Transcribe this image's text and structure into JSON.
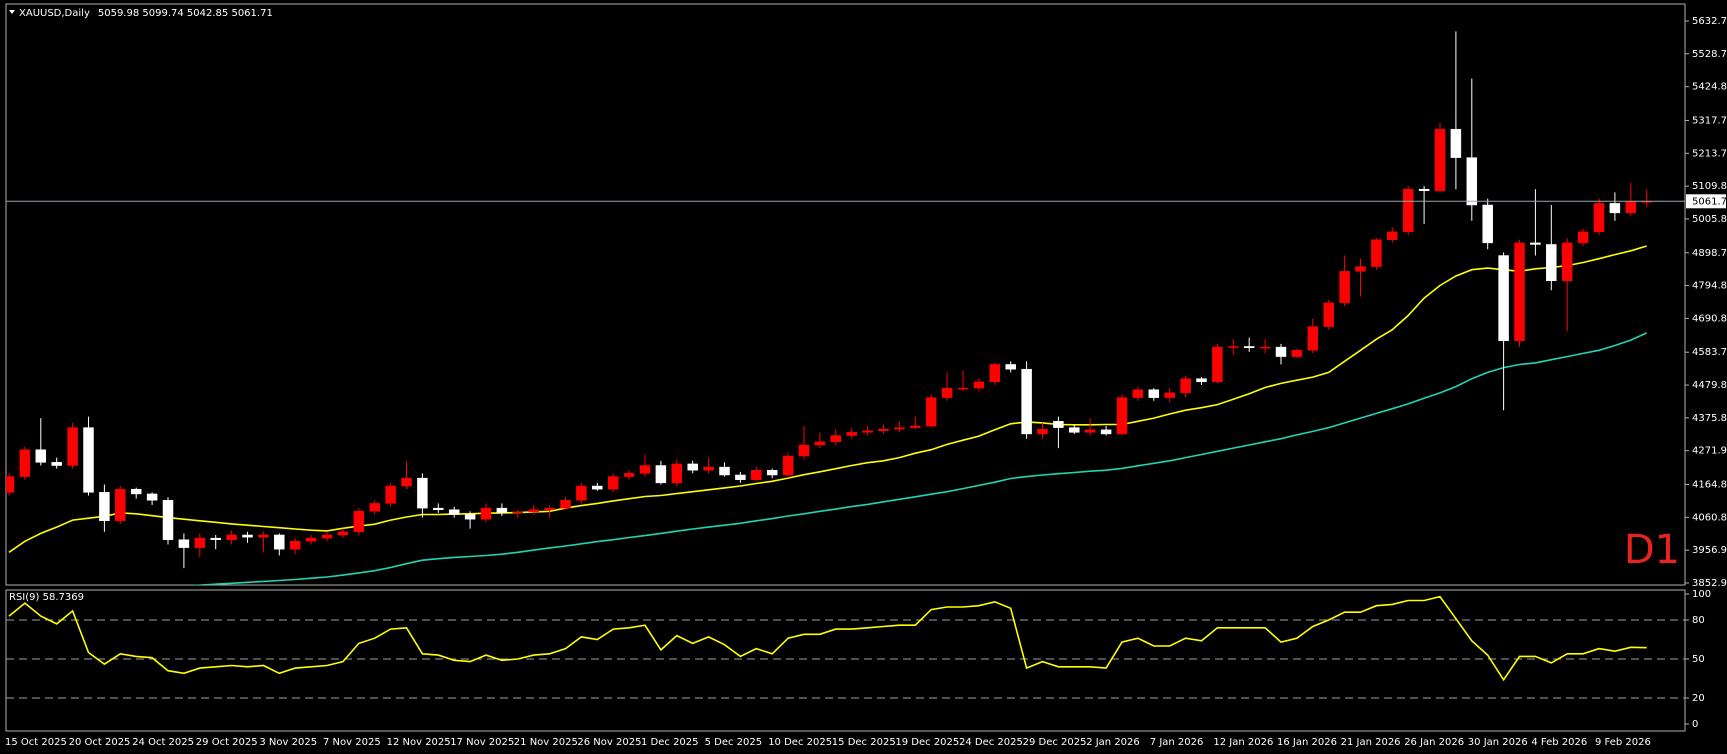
{
  "chart_data": [
    {
      "type": "candlestick",
      "title": "XAUUSD,Daily",
      "info": "5059.98 5099.74 5042.85 5061.71",
      "annotation": "D1",
      "categories": [
        "15 Oct 2025",
        null,
        null,
        null,
        "20 Oct 2025",
        null,
        null,
        null,
        "24 Oct 2025",
        null,
        null,
        null,
        "29 Oct 2025",
        null,
        null,
        null,
        "3 Nov 2025",
        null,
        null,
        null,
        "7 Nov 2025",
        null,
        null,
        null,
        "12 Nov 2025",
        null,
        null,
        null,
        "17 Nov 2025",
        null,
        null,
        null,
        "21 Nov 2025",
        null,
        null,
        null,
        "26 Nov 2025",
        null,
        null,
        null,
        "1 Dec 2025",
        null,
        null,
        null,
        "5 Dec 2025",
        null,
        null,
        null,
        "10 Dec 2025",
        null,
        null,
        null,
        "15 Dec 2025",
        null,
        null,
        null,
        "19 Dec 2025",
        null,
        null,
        null,
        "24 Dec 2025",
        null,
        null,
        null,
        "29 Dec 2025",
        null,
        null,
        null,
        "2 Jan 2026",
        null,
        null,
        null,
        "7 Jan 2026",
        null,
        null,
        null,
        "12 Jan 2026",
        null,
        null,
        null,
        "16 Jan 2026",
        null,
        null,
        null,
        "21 Jan 2026",
        null,
        null,
        null,
        "26 Jan 2026",
        null,
        null,
        null,
        "30 Jan 2026",
        null,
        null,
        null,
        "4 Feb 2026",
        null,
        null,
        null,
        "9 Feb 2026",
        null,
        null,
        null
      ],
      "open": [
        4140,
        4190,
        4275,
        4235,
        4225,
        4345,
        4140,
        4050,
        4150,
        4135,
        4115,
        3990,
        3965,
        3995,
        3990,
        4005,
        3998,
        4005,
        3960,
        3985,
        3995,
        4005,
        4015,
        4080,
        4105,
        4160,
        4185,
        4090,
        4085,
        4070,
        4055,
        4090,
        4075,
        4078,
        4085,
        4090,
        4115,
        4160,
        4150,
        4190,
        4200,
        4225,
        4170,
        4230,
        4210,
        4220,
        4195,
        4180,
        4210,
        4195,
        4255,
        4290,
        4300,
        4320,
        4330,
        4335,
        4340,
        4345,
        4350,
        4440,
        4468,
        4470,
        4490,
        4545,
        4530,
        4325,
        4365,
        4345,
        4330,
        4338,
        4325,
        4440,
        4465,
        4440,
        4455,
        4500,
        4490,
        4600,
        4602,
        4598,
        4600,
        4570,
        4590,
        4665,
        4740,
        4840,
        4855,
        4940,
        4965,
        5100,
        5095,
        5290,
        5200,
        5050,
        4890,
        4620,
        4930,
        4925,
        4810,
        4930,
        4965,
        5055,
        5025,
        5059.98
      ],
      "high": [
        4200,
        4285,
        4375,
        4250,
        4360,
        4380,
        4165,
        4160,
        4155,
        4140,
        4125,
        4010,
        4010,
        4005,
        4020,
        4015,
        4015,
        4010,
        3995,
        4005,
        4015,
        4025,
        4090,
        4115,
        4170,
        4240,
        4200,
        4105,
        4095,
        4080,
        4105,
        4105,
        4085,
        4100,
        4100,
        4125,
        4170,
        4170,
        4200,
        4210,
        4260,
        4240,
        4245,
        4240,
        4250,
        4235,
        4205,
        4220,
        4215,
        4265,
        4350,
        4330,
        4340,
        4345,
        4350,
        4355,
        4365,
        4380,
        4450,
        4520,
        4525,
        4500,
        4550,
        4555,
        4555,
        4360,
        4380,
        4355,
        4375,
        4350,
        4450,
        4475,
        4470,
        4470,
        4510,
        4505,
        4610,
        4625,
        4630,
        4625,
        4610,
        4595,
        4690,
        4750,
        4890,
        4880,
        4945,
        4980,
        5110,
        5110,
        5310,
        5600,
        5450,
        5070,
        4900,
        4940,
        5100,
        5050,
        4945,
        4975,
        5070,
        5090,
        5120,
        5099.74
      ],
      "low": [
        4130,
        4180,
        4225,
        4215,
        4215,
        4130,
        4015,
        4040,
        4120,
        4100,
        3975,
        3900,
        3935,
        3960,
        3975,
        3980,
        3950,
        3940,
        3945,
        3975,
        3985,
        3995,
        4005,
        4070,
        4095,
        4150,
        4060,
        4075,
        4060,
        4025,
        4045,
        4065,
        4060,
        4070,
        4060,
        4085,
        4105,
        4145,
        4140,
        4180,
        4190,
        4165,
        4160,
        4200,
        4200,
        4190,
        4170,
        4175,
        4185,
        4185,
        4245,
        4280,
        4290,
        4310,
        4320,
        4325,
        4330,
        4340,
        4345,
        4430,
        4460,
        4460,
        4480,
        4520,
        4310,
        4310,
        4280,
        4325,
        4320,
        4320,
        4320,
        4430,
        4430,
        4425,
        4440,
        4480,
        4485,
        4575,
        4585,
        4580,
        4545,
        4565,
        4580,
        4655,
        4730,
        4760,
        4845,
        4930,
        4955,
        4990,
        5090,
        5100,
        5000,
        4910,
        4400,
        4600,
        4890,
        4780,
        4650,
        4920,
        4955,
        5000,
        5015,
        5042.85
      ],
      "close": [
        4190,
        4275,
        4235,
        4225,
        4345,
        4140,
        4050,
        4150,
        4135,
        4115,
        3990,
        3965,
        3995,
        3990,
        4005,
        3998,
        4005,
        3960,
        3985,
        3995,
        4005,
        4015,
        4080,
        4105,
        4160,
        4185,
        4090,
        4085,
        4070,
        4055,
        4090,
        4075,
        4078,
        4085,
        4090,
        4115,
        4160,
        4150,
        4190,
        4200,
        4225,
        4170,
        4230,
        4210,
        4220,
        4195,
        4180,
        4210,
        4195,
        4255,
        4290,
        4300,
        4320,
        4330,
        4335,
        4340,
        4345,
        4350,
        4440,
        4470,
        4470,
        4490,
        4545,
        4530,
        4325,
        4340,
        4345,
        4330,
        4338,
        4325,
        4440,
        4465,
        4440,
        4455,
        4500,
        4490,
        4600,
        4602,
        4598,
        4600,
        4570,
        4590,
        4665,
        4740,
        4840,
        4855,
        4940,
        4965,
        5100,
        5095,
        5290,
        5200,
        5050,
        4930,
        4620,
        4930,
        4925,
        4810,
        4930,
        4965,
        5055,
        5025,
        5060,
        5061.71
      ],
      "colors": {
        "up": "#ff0000",
        "down": "#ffffff"
      },
      "overlays": [
        {
          "color": "#ffff00",
          "values": [
            3950,
            3985,
            4010,
            4030,
            4052,
            4058,
            4064,
            4075,
            4072,
            4066,
            4060,
            4055,
            4050,
            4045,
            4040,
            4036,
            4032,
            4028,
            4024,
            4020,
            4018,
            4026,
            4033,
            4039,
            4052,
            4062,
            4070,
            4070,
            4071,
            4072,
            4074,
            4075,
            4076,
            4078,
            4080,
            4090,
            4098,
            4105,
            4113,
            4120,
            4127,
            4130,
            4136,
            4142,
            4148,
            4154,
            4160,
            4168,
            4175,
            4185,
            4196,
            4205,
            4215,
            4225,
            4234,
            4240,
            4250,
            4264,
            4275,
            4292,
            4305,
            4318,
            4338,
            4357,
            4363,
            4360,
            4355,
            4354,
            4354,
            4355,
            4355,
            4365,
            4375,
            4388,
            4400,
            4408,
            4418,
            4435,
            4452,
            4472,
            4485,
            4495,
            4505,
            4520,
            4555,
            4590,
            4625,
            4655,
            4700,
            4755,
            4795,
            4825,
            4845,
            4850,
            4845,
            4840,
            4848,
            4852,
            4858,
            4868,
            4880,
            4893,
            4905,
            4920
          ]
        },
        {
          "color": "#1fd6b4",
          "values": [
            null,
            null,
            null,
            null,
            null,
            null,
            null,
            null,
            null,
            null,
            null,
            3843,
            3846,
            3849,
            3852,
            3855,
            3858,
            3861,
            3864,
            3868,
            3872,
            3878,
            3885,
            3892,
            3902,
            3914,
            3925,
            3930,
            3934,
            3937,
            3940,
            3944,
            3950,
            3957,
            3964,
            3970,
            3977,
            3984,
            3990,
            3997,
            4003,
            4010,
            4017,
            4024,
            4030,
            4036,
            4042,
            4050,
            4057,
            4065,
            4072,
            4080,
            4087,
            4095,
            4102,
            4110,
            4118,
            4126,
            4134,
            4142,
            4152,
            4162,
            4172,
            4184,
            4190,
            4195,
            4199,
            4203,
            4207,
            4210,
            4216,
            4224,
            4232,
            4240,
            4250,
            4260,
            4270,
            4280,
            4290,
            4300,
            4310,
            4322,
            4333,
            4345,
            4360,
            4375,
            4390,
            4405,
            4420,
            4438,
            4455,
            4475,
            4500,
            4520,
            4535,
            4545,
            4550,
            4560,
            4570,
            4580,
            4590,
            4605,
            4622,
            4645
          ]
        }
      ],
      "price_line": {
        "value": 5061.71,
        "label": "5061.71"
      },
      "ylim": [
        3846.6,
        5686.5
      ],
      "yticks": [
        {
          "value": 5632.7,
          "label": "5632.70"
        },
        {
          "value": 5528.75,
          "label": "5528.75"
        },
        {
          "value": 5424.8,
          "label": "5424.80"
        },
        {
          "value": 5317.7,
          "label": "5317.70"
        },
        {
          "value": 5213.75,
          "label": "5213.75"
        },
        {
          "value": 5109.8,
          "label": "5109.80"
        },
        {
          "value": 5005.85,
          "label": "5005.85"
        },
        {
          "value": 4898.75,
          "label": "4898.75"
        },
        {
          "value": 4794.8,
          "label": "4794.80"
        },
        {
          "value": 4690.85,
          "label": "4690.85"
        },
        {
          "value": 4583.75,
          "label": "4583.75"
        },
        {
          "value": 4479.8,
          "label": "4479.80"
        },
        {
          "value": 4375.85,
          "label": "4375.85"
        },
        {
          "value": 4271.9,
          "label": "4271.90"
        },
        {
          "value": 4164.8,
          "label": "4164.80"
        },
        {
          "value": 4060.85,
          "label": "4060.85"
        },
        {
          "value": 3956.9,
          "label": "3956.90"
        },
        {
          "value": 3852.95,
          "label": "3852.95"
        }
      ]
    },
    {
      "type": "line",
      "title": "RSI(9) 58.7369",
      "color": "#ffff00",
      "values": [
        83,
        93,
        83,
        77,
        87,
        55,
        46,
        54,
        52,
        51,
        41,
        39,
        43,
        44,
        45,
        44,
        45,
        39,
        43,
        44,
        45,
        48,
        62,
        66,
        73,
        74,
        54,
        53,
        49,
        48,
        53,
        49,
        50,
        53,
        54,
        58,
        67,
        65,
        73,
        74,
        76,
        57,
        68,
        62,
        67,
        61,
        52,
        58,
        54,
        66,
        69,
        69,
        73,
        73,
        74,
        75,
        76,
        76,
        88,
        90,
        90,
        91,
        94,
        89,
        43,
        48,
        44,
        44,
        44,
        43,
        63,
        66,
        60,
        60,
        66,
        64,
        74,
        74,
        74,
        74,
        63,
        66,
        75,
        80,
        86,
        86,
        91,
        92,
        95,
        95,
        98,
        81,
        64,
        53,
        34,
        52,
        52,
        47,
        54,
        54,
        58,
        56,
        59,
        58.7369
      ],
      "ylim": [
        -5.4,
        103.1
      ],
      "yticks": [
        100,
        80,
        50,
        20,
        0
      ],
      "levels": [
        80,
        50,
        20
      ]
    }
  ]
}
